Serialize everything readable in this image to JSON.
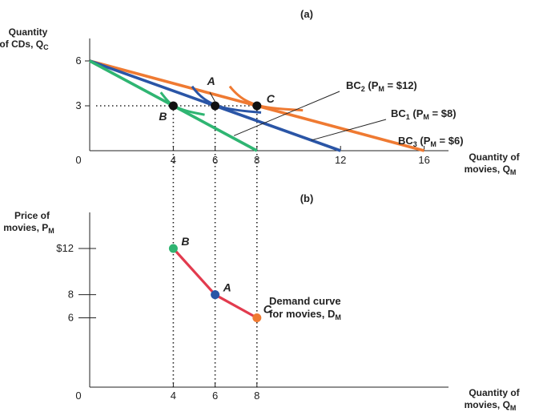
{
  "chart_data": [
    {
      "panel": "(a)",
      "type": "line",
      "ylabel_line1": "Quantity",
      "ylabel_line2": "of CDs, Q",
      "ylabel_sub": "C",
      "xlabel_line1": "Quantity of",
      "xlabel_line2": "movies, Q",
      "xlabel_sub": "M",
      "xlim": [
        0,
        17.5
      ],
      "ylim": [
        0,
        6.5
      ],
      "x_ticks": [
        {
          "value": 4,
          "label": "4"
        },
        {
          "value": 6,
          "label": "6"
        },
        {
          "value": 8,
          "label": "8"
        },
        {
          "value": 12,
          "label": "12"
        },
        {
          "value": 16,
          "label": "16"
        }
      ],
      "y_ticks": [
        {
          "value": 3,
          "label": "3"
        },
        {
          "value": 6,
          "label": "6"
        }
      ],
      "origin_label": "0",
      "budget_lines": [
        {
          "label_main": "BC",
          "label_sub": "1",
          "label_rest": " (P",
          "label_psub": "M",
          "label_val": " = $8)",
          "color": "#2a55a6",
          "x": [
            0,
            12
          ],
          "y": [
            6,
            0
          ]
        },
        {
          "label_main": "BC",
          "label_sub": "2",
          "label_rest": " (P",
          "label_psub": "M",
          "label_val": " = $12)",
          "color": "#2fb572",
          "x": [
            0,
            8
          ],
          "y": [
            6,
            0
          ]
        },
        {
          "label_main": "BC",
          "label_sub": "3",
          "label_rest": " (P",
          "label_psub": "M",
          "label_val": " = $6)",
          "color": "#ef7a32",
          "x": [
            0,
            16
          ],
          "y": [
            6,
            0
          ]
        }
      ],
      "indifference_curves": [
        {
          "tangent_to": "B",
          "color": "#2fb572",
          "x": [
            3.4,
            3.7,
            4,
            4.6,
            5.5
          ],
          "y": [
            3.9,
            3.35,
            3,
            2.65,
            2.4
          ]
        },
        {
          "tangent_to": "A",
          "color": "#2a55a6",
          "x": [
            4.9,
            5.2,
            6,
            7.0,
            8.2
          ],
          "y": [
            4.3,
            3.7,
            3,
            2.7,
            2.55
          ]
        },
        {
          "tangent_to": "C",
          "color": "#ef7a32",
          "x": [
            6.7,
            7.1,
            8,
            9.0,
            10.2
          ],
          "y": [
            4.3,
            3.6,
            3,
            2.8,
            2.7
          ]
        }
      ],
      "points": [
        {
          "label": "A",
          "x": 6,
          "y": 3
        },
        {
          "label": "B",
          "x": 4,
          "y": 3
        },
        {
          "label": "C",
          "x": 8,
          "y": 3
        }
      ]
    },
    {
      "panel": "(b)",
      "type": "line",
      "ylabel_line1": "Price of",
      "ylabel_line2": "movies, P",
      "ylabel_sub": "M",
      "xlabel_line1": "Quantity of",
      "xlabel_line2": "movies, Q",
      "xlabel_sub": "M",
      "xlim": [
        0,
        17.5
      ],
      "ylim": [
        0,
        18
      ],
      "x_ticks": [
        {
          "value": 4,
          "label": "4"
        },
        {
          "value": 6,
          "label": "6"
        },
        {
          "value": 8,
          "label": "8"
        }
      ],
      "y_ticks": [
        {
          "value": 6,
          "label": "6"
        },
        {
          "value": 8,
          "label": "8"
        },
        {
          "value": 12,
          "label": "$12"
        }
      ],
      "origin_label": "0",
      "series": [
        {
          "label_line1": "Demand curve",
          "label_line2": "for movies, D",
          "label_sub": "M",
          "color": "#e23b4e",
          "points": [
            {
              "label": "B",
              "x": 4,
              "y": 12,
              "color": "#2fb572"
            },
            {
              "label": "A",
              "x": 6,
              "y": 8,
              "color": "#2a55a6"
            },
            {
              "label": "C",
              "x": 8,
              "y": 6,
              "color": "#ef7a32"
            }
          ]
        }
      ]
    }
  ]
}
